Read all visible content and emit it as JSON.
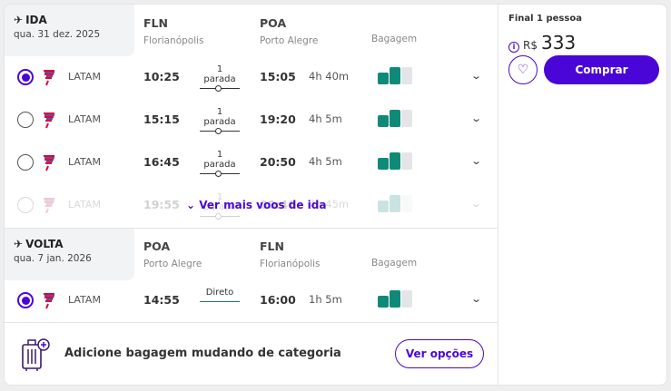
{
  "outbound": {
    "label": "IDA",
    "date": "qua. 31 dez. 2025",
    "origin_code": "FLN",
    "origin_city": "Florianópolis",
    "dest_code": "POA",
    "dest_city": "Porto Alegre",
    "baggage_label": "Bagagem",
    "flights": [
      {
        "airline": "LATAM",
        "departure": "10:25",
        "stops": "1 parada",
        "arrival": "15:05",
        "duration": "4h 40m",
        "selected": true
      },
      {
        "airline": "LATAM",
        "departure": "15:15",
        "stops": "1 parada",
        "arrival": "19:20",
        "duration": "4h 5m",
        "selected": false
      },
      {
        "airline": "LATAM",
        "departure": "16:45",
        "stops": "1 parada",
        "arrival": "20:50",
        "duration": "4h 5m",
        "selected": false
      },
      {
        "airline": "LATAM",
        "departure": "19:55",
        "stops": "1 parada",
        "arrival": "00:40",
        "duration": "4h 45m",
        "selected": false
      }
    ],
    "more_label": "Ver mais voos de ida"
  },
  "return": {
    "label": "VOLTA",
    "date": "qua. 7 jan. 2026",
    "origin_code": "POA",
    "origin_city": "Porto Alegre",
    "dest_code": "FLN",
    "dest_city": "Florianópolis",
    "baggage_label": "Bagagem",
    "flights": [
      {
        "airline": "LATAM",
        "departure": "14:55",
        "stops": "Direto",
        "arrival": "16:00",
        "duration": "1h 5m",
        "selected": true
      }
    ]
  },
  "baggage_banner": {
    "text": "Adicione bagagem mudando de categoria",
    "button": "Ver opções"
  },
  "price": {
    "label": "Final 1 pessoa",
    "currency": "R$",
    "amount": "333",
    "buy_button": "Comprar"
  },
  "colors": {
    "accent": "#4a06d6",
    "baggage": "#0f8a78"
  }
}
